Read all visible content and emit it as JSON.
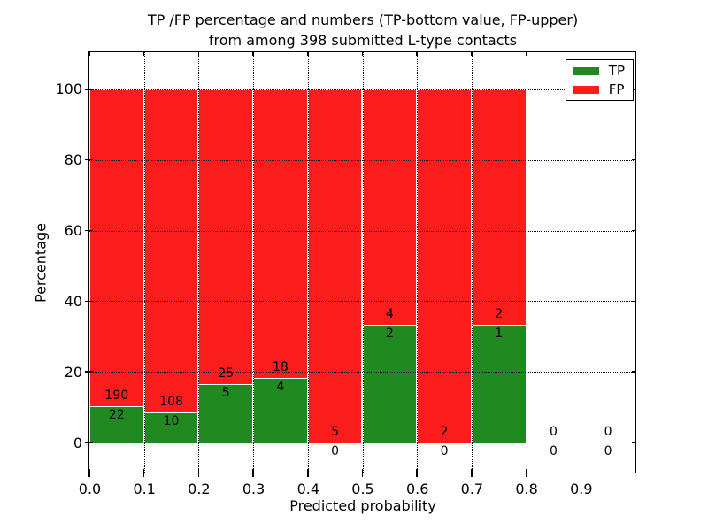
{
  "title": {
    "line1": "TP /FP percentage and numbers (TP-bottom value, FP-upper)",
    "line2": "from among 398 submitted L-type contacts"
  },
  "axes": {
    "xlabel": "Predicted probability",
    "ylabel": "Percentage"
  },
  "colors": {
    "tp_green": "#208a20",
    "fp_red": "#fb1c1c",
    "grid": "#000000",
    "background": "#ffffff"
  },
  "legend": {
    "position": "upper right",
    "items": [
      {
        "label": "TP",
        "color": "#208a20"
      },
      {
        "label": "FP",
        "color": "#fb1c1c"
      }
    ]
  },
  "chart_data": {
    "type": "bar",
    "stacked": true,
    "normalization": "each 0.1-wide bin scaled so TP+FP = 100%",
    "title": "TP /FP percentage and numbers (TP-bottom value, FP-upper) from among 398 submitted L-type contacts",
    "total_submitted_contacts": 398,
    "xlabel": "Predicted probability",
    "ylabel": "Percentage",
    "bin_width": 0.1,
    "bin_starts": [
      0.0,
      0.1,
      0.2,
      0.3,
      0.4,
      0.5,
      0.6,
      0.7,
      0.8,
      0.9
    ],
    "series": [
      {
        "name": "TP",
        "color": "#208a20",
        "counts": [
          22,
          10,
          5,
          4,
          0,
          2,
          0,
          1,
          0,
          0
        ]
      },
      {
        "name": "FP",
        "color": "#fb1c1c",
        "counts": [
          190,
          108,
          25,
          18,
          5,
          4,
          2,
          2,
          0,
          0
        ]
      }
    ],
    "tp_percent_per_bin": [
      10.4,
      8.5,
      16.7,
      18.2,
      0,
      33.3,
      0,
      33.3,
      null,
      null
    ],
    "x_tick_labels": [
      "0.0",
      "0.1",
      "0.2",
      "0.3",
      "0.4",
      "0.5",
      "0.6",
      "0.7",
      "0.8",
      "0.9"
    ],
    "y_ticks": [
      0,
      20,
      40,
      60,
      80,
      100
    ],
    "y_tick_labels": [
      "0",
      "20",
      "40",
      "60",
      "80",
      "100"
    ],
    "xlim": [
      0.0,
      1.0
    ],
    "ylim": [
      -8.5,
      110.5
    ],
    "grid": "dotted black, drawn above bars",
    "bar_edge_color": "#ffffff",
    "legend_position": "upper right"
  }
}
